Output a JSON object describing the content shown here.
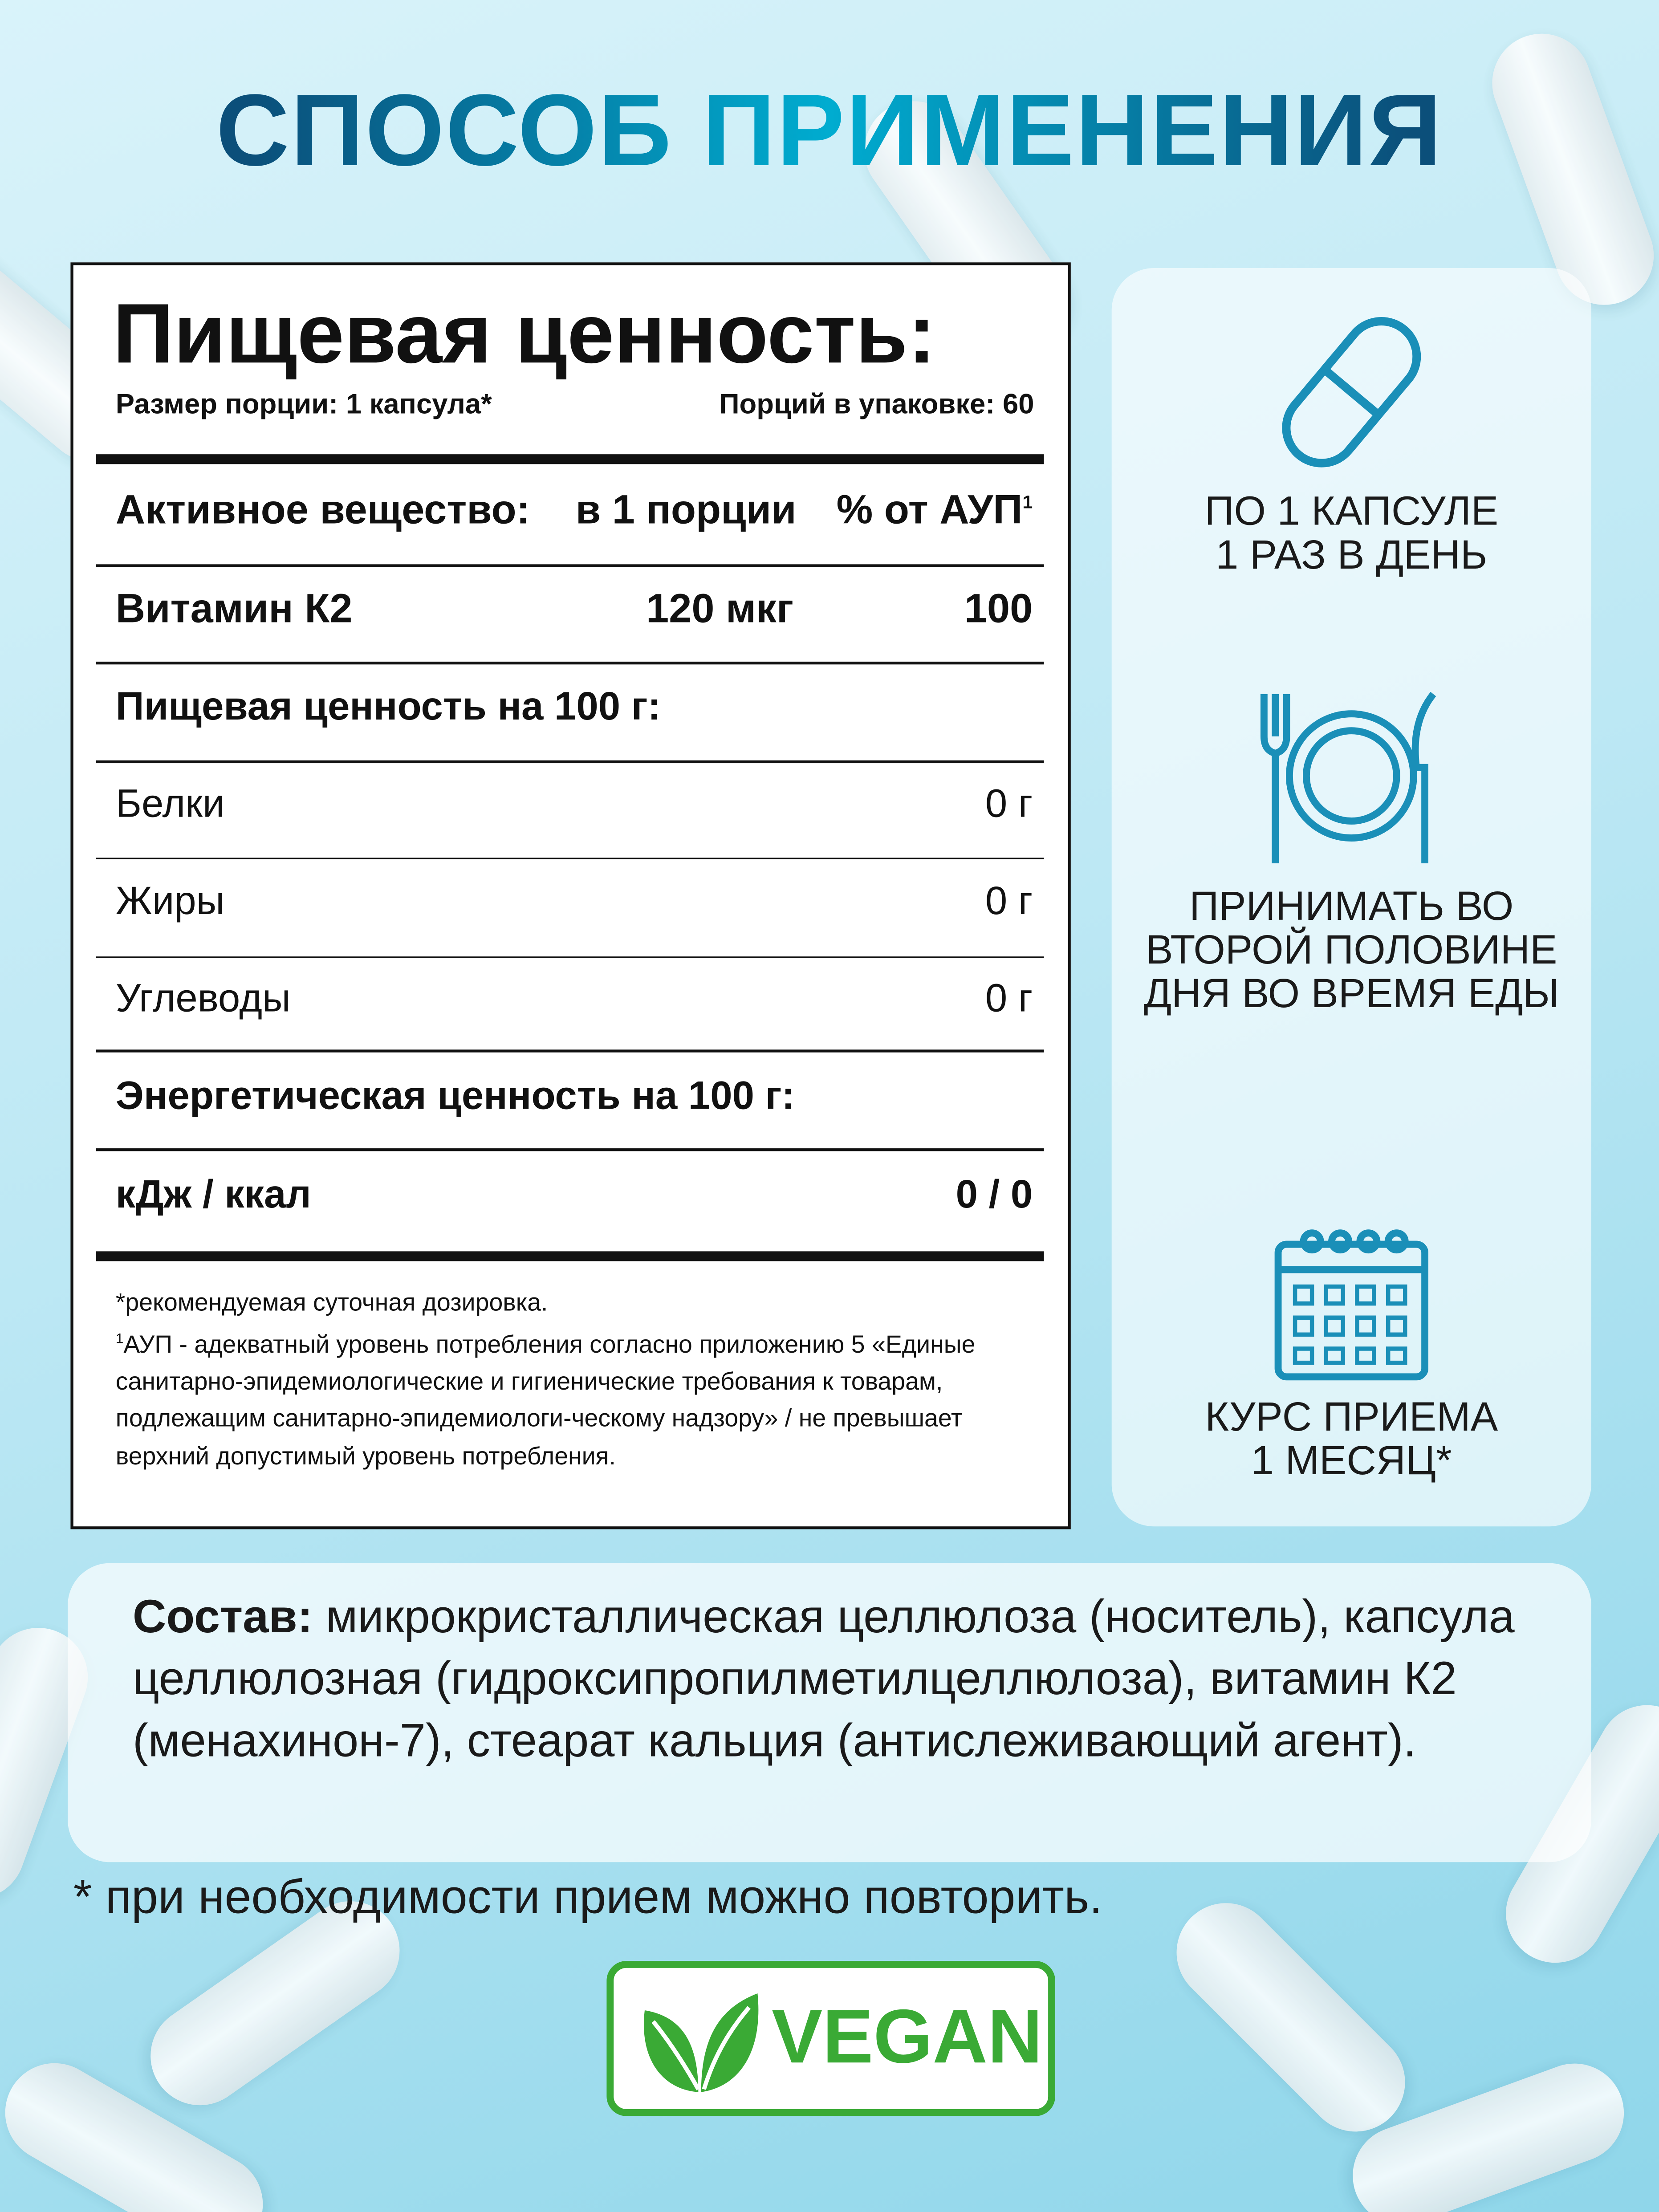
{
  "title": "СПОСОБ ПРИМЕНЕНИЯ",
  "label": {
    "heading": "Пищевая ценность:",
    "serving_size": "Размер порции: 1 капсула*",
    "servings_per_pack": "Порций в упаковке: 60",
    "columns": {
      "substance": "Активное вещество:",
      "per_serving": "в 1 порции",
      "percent": "% от АУП",
      "sup": "1"
    },
    "active": {
      "name": "Витамин К2",
      "amount": "120 мкг",
      "percent": "100"
    },
    "nutrition_header": "Пищевая ценность на 100 г:",
    "nutrients": [
      {
        "name": "Белки",
        "value": "0 г"
      },
      {
        "name": "Жиры",
        "value": "0 г"
      },
      {
        "name": "Углеводы",
        "value": "0 г"
      }
    ],
    "energy_header": "Энергетическая ценность на 100 г:",
    "energy": {
      "name": "кДж / ккал",
      "value": "0 / 0"
    },
    "footnotes": {
      "star": "*рекомендуемая суточная дозировка.",
      "sup": "1",
      "aup": "АУП - адекватный уровень потребления согласно приложению 5 «Единые санитарно-эпидемиологические и гигиенические требования к товарам, подлежащим санитарно-эпидемиологи-ческому надзору» / не превышает верхний допустимый уровень потребления."
    }
  },
  "usage": [
    {
      "icon": "capsule-icon",
      "line1": "ПО 1 КАПСУЛЕ",
      "line2": "1 РАЗ В ДЕНЬ"
    },
    {
      "icon": "plate-fork-knife-icon",
      "text": "ПРИНИМАТЬ ВО ВТОРОЙ ПОЛОВИНЕ ДНЯ ВО ВРЕМЯ ЕДЫ"
    },
    {
      "icon": "calendar-icon",
      "line1": "КУРС ПРИЕМА",
      "line2": "1 МЕСЯЦ*"
    }
  ],
  "composition": {
    "label": "Состав:",
    "text": " микрокристаллическая целлюлоза (носитель), капсула целлюлозная (гидроксипропилметилцеллюлоза), витамин К2 (менахинон-7), стеарат кальция (антислеживающий агент)."
  },
  "note": "* при необходимости прием можно повторить.",
  "badge": {
    "text": "VEGAN",
    "color": "#3aaa35"
  },
  "colors": {
    "title_dark": "#0b4f7a",
    "title_light": "#00acd0",
    "icon": "#1a8fb8"
  }
}
